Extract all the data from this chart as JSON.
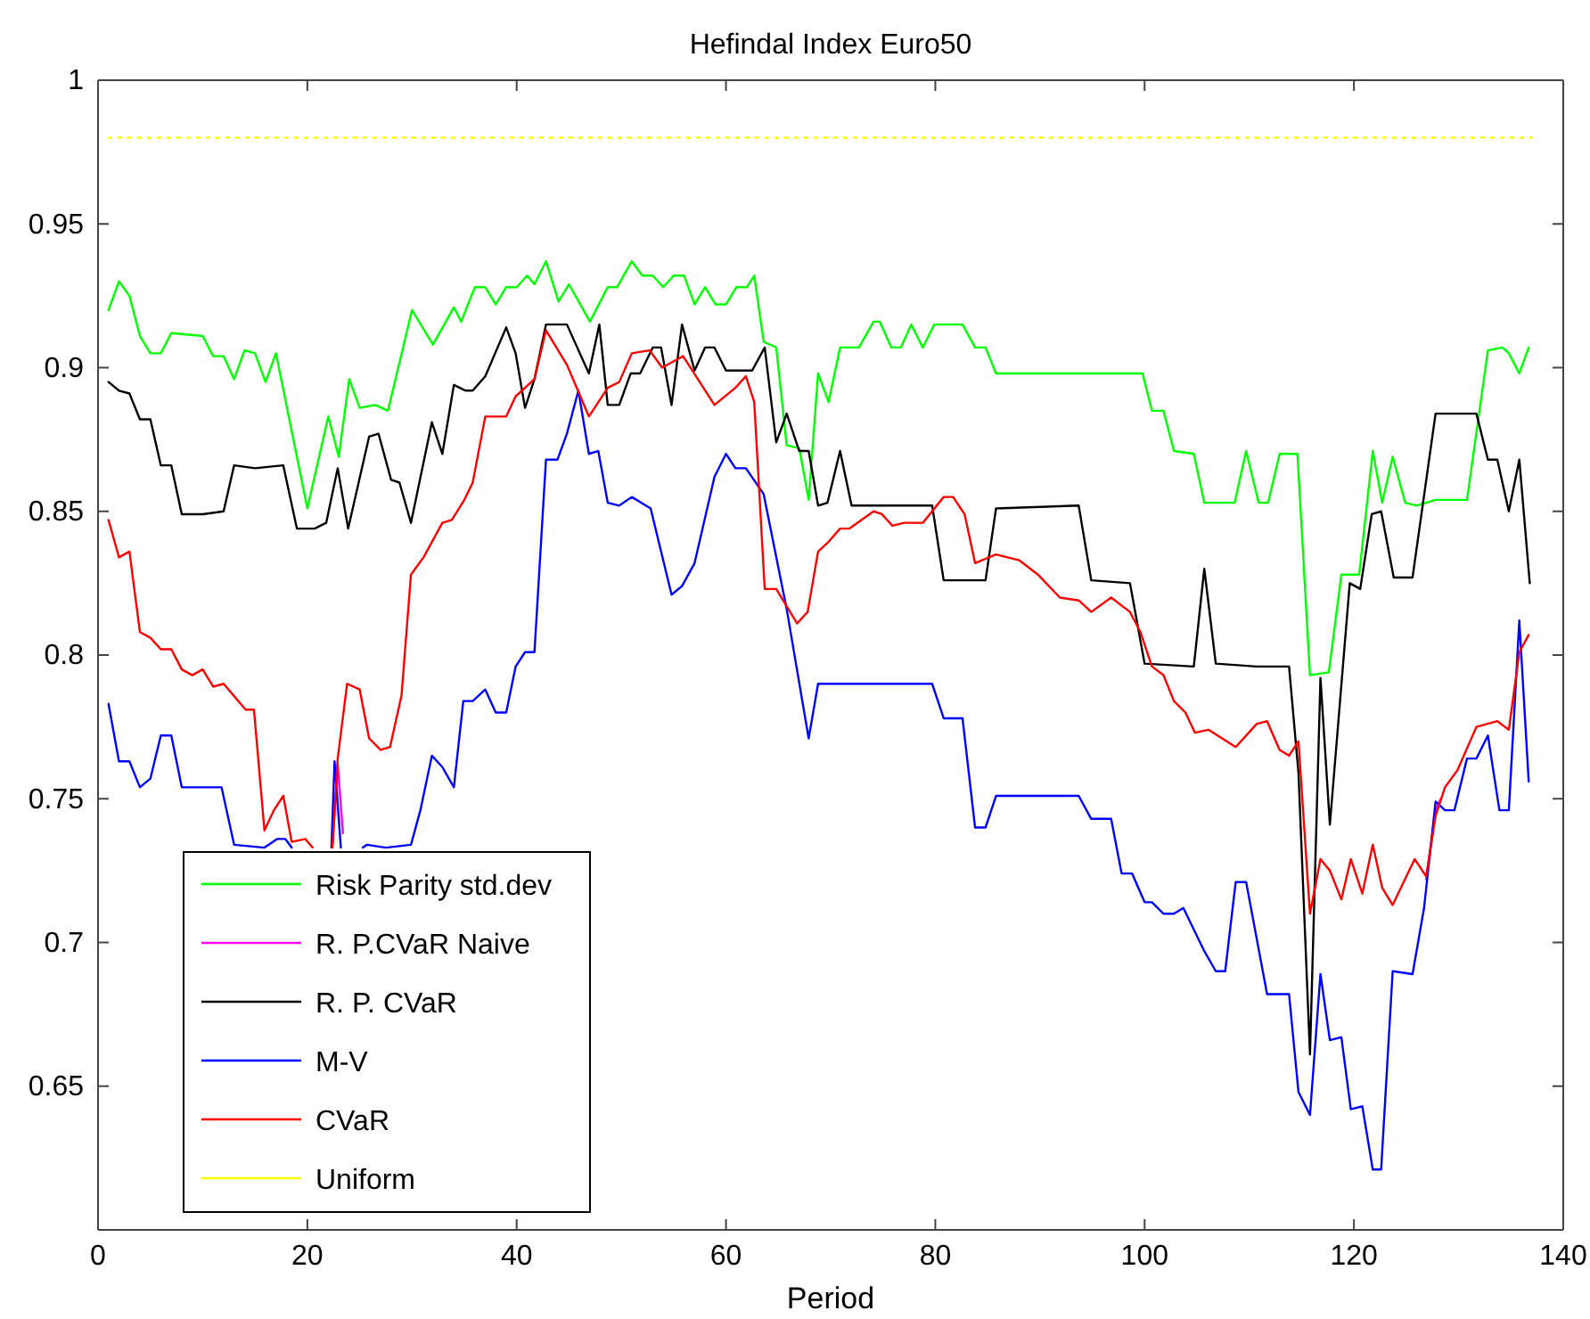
{
  "chart_data": {
    "type": "line",
    "title": "Hefindal Index Euro50",
    "xlabel": "Period",
    "xlim": [
      0,
      140
    ],
    "xticks": [
      0,
      20,
      40,
      60,
      80,
      100,
      120,
      140
    ],
    "ylim": [
      0.6,
      1
    ],
    "yticks": [
      0.65,
      0.7,
      0.75,
      0.8,
      0.85,
      0.9,
      0.95,
      1
    ],
    "grid": false,
    "legend": "bottom left",
    "marker": "none",
    "line_style": "solid",
    "series": [
      {
        "name": "Risk Parity std.dev",
        "color": "#00ff00",
        "x": [
          1,
          2,
          3,
          4,
          5,
          6,
          7,
          10,
          11,
          12,
          13,
          14,
          15,
          16,
          17,
          20,
          22,
          23,
          24,
          25,
          26.5,
          27.7,
          30,
          32,
          34,
          34.7,
          36,
          37,
          38,
          39,
          40,
          41,
          41.7,
          42.8,
          44,
          45,
          47,
          48.7,
          49.6,
          51,
          52,
          53,
          54,
          55,
          56,
          57,
          58,
          59,
          60,
          61,
          62,
          62.7,
          63.6,
          64.8,
          65.8,
          67,
          67.9,
          68.8,
          69.8,
          70.9,
          72.7,
          74.1,
          74.7,
          75.8,
          76.7,
          77.7,
          78.8,
          79.9,
          82.6,
          83.8,
          84.8,
          85.8,
          99.8,
          100.7,
          101.8,
          102.8,
          104.7,
          105.7,
          108.6,
          109.7,
          110.9,
          111.8,
          112.9,
          114.6,
          115.8,
          117.6,
          118.8,
          120.5,
          121.8,
          122.7,
          123.7,
          124.9,
          126,
          127.8,
          130.8,
          132.8,
          134.2,
          134.8,
          135.8,
          136.7
        ],
        "values": [
          0.92,
          0.93,
          0.925,
          0.911,
          0.905,
          0.905,
          0.912,
          0.911,
          0.904,
          0.904,
          0.896,
          0.906,
          0.905,
          0.895,
          0.905,
          0.851,
          0.883,
          0.869,
          0.896,
          0.886,
          0.887,
          0.885,
          0.92,
          0.908,
          0.921,
          0.916,
          0.928,
          0.928,
          0.922,
          0.928,
          0.928,
          0.932,
          0.929,
          0.937,
          0.923,
          0.929,
          0.916,
          0.928,
          0.928,
          0.937,
          0.932,
          0.932,
          0.928,
          0.932,
          0.932,
          0.922,
          0.928,
          0.922,
          0.922,
          0.928,
          0.928,
          0.932,
          0.909,
          0.907,
          0.873,
          0.872,
          0.854,
          0.898,
          0.888,
          0.907,
          0.907,
          0.916,
          0.916,
          0.907,
          0.907,
          0.915,
          0.907,
          0.915,
          0.915,
          0.907,
          0.907,
          0.898,
          0.898,
          0.885,
          0.885,
          0.871,
          0.87,
          0.853,
          0.853,
          0.871,
          0.853,
          0.853,
          0.87,
          0.87,
          0.793,
          0.794,
          0.828,
          0.828,
          0.871,
          0.853,
          0.869,
          0.853,
          0.852,
          0.854,
          0.854,
          0.906,
          0.907,
          0.905,
          0.898,
          0.907
        ]
      },
      {
        "name": "R. P.CVaR Naive",
        "color": "#ff00ff",
        "x": [
          22.4,
          22.9,
          23.4,
          80,
          126.9,
          127.8,
          128.3
        ],
        "values": [
          0.734,
          0.762,
          0.738,
          null,
          0.722,
          0.746,
          0.75
        ]
      },
      {
        "name": "R. P. CVaR",
        "color": "#000000",
        "x": [
          1,
          2,
          3,
          4,
          5,
          6,
          7,
          8,
          10,
          12,
          13,
          15,
          17.7,
          19,
          20.7,
          21.8,
          22.9,
          23.9,
          25.9,
          26.8,
          28,
          28.8,
          29.9,
          31.9,
          32.9,
          34,
          35.1,
          35.8,
          37,
          39,
          39.9,
          40.8,
          41.7,
          42.8,
          44.8,
          46.9,
          47.9,
          48.7,
          49.8,
          50.9,
          51.8,
          53,
          53.8,
          54.8,
          55.8,
          57,
          58,
          58.9,
          60,
          62.5,
          63.7,
          64.8,
          65.8,
          67,
          67.9,
          68.8,
          69.7,
          70.9,
          72,
          75.8,
          79.7,
          80.8,
          84.8,
          85.8,
          93.7,
          94.9,
          98.6,
          100,
          104.7,
          105.7,
          106.8,
          110.7,
          113.8,
          114.7,
          115.8,
          116.8,
          117.7,
          119.6,
          120.6,
          121.7,
          122.6,
          123.8,
          125.6,
          127.8,
          131.7,
          132.8,
          133.7,
          134.8,
          135.8,
          136.8
        ],
        "values": [
          0.895,
          0.892,
          0.891,
          0.882,
          0.882,
          0.866,
          0.866,
          0.849,
          0.849,
          0.85,
          0.866,
          0.865,
          0.866,
          0.844,
          0.844,
          0.846,
          0.865,
          0.844,
          0.876,
          0.877,
          0.861,
          0.86,
          0.846,
          0.881,
          0.87,
          0.894,
          0.892,
          0.892,
          0.897,
          0.914,
          0.905,
          0.886,
          0.896,
          0.915,
          0.915,
          0.898,
          0.915,
          0.887,
          0.887,
          0.898,
          0.898,
          0.907,
          0.907,
          0.887,
          0.915,
          0.899,
          0.907,
          0.907,
          0.899,
          0.899,
          0.907,
          0.874,
          0.884,
          0.871,
          0.871,
          0.852,
          0.853,
          0.871,
          0.852,
          0.852,
          0.852,
          0.826,
          0.826,
          0.851,
          0.852,
          0.826,
          0.825,
          0.797,
          0.796,
          0.83,
          0.797,
          0.796,
          0.796,
          0.759,
          0.661,
          0.792,
          0.741,
          0.825,
          0.823,
          0.849,
          0.85,
          0.827,
          0.827,
          0.884,
          0.884,
          0.868,
          0.868,
          0.85,
          0.868,
          0.825
        ]
      },
      {
        "name": "M-V",
        "color": "#0000ff",
        "x": [
          1,
          2,
          3,
          4,
          5,
          6,
          7,
          8,
          11.8,
          13,
          15.9,
          17.1,
          17.9,
          18.5,
          18.6,
          22.3,
          22.6,
          23.2,
          23.3,
          25.3,
          25.7,
          27.5,
          29.9,
          30.8,
          31.9,
          32.9,
          34,
          34.9,
          35.8,
          37,
          38,
          39,
          39.9,
          40.8,
          41.7,
          42.8,
          43.9,
          44.8,
          45.9,
          46.9,
          47.8,
          48.7,
          49.8,
          51,
          52.8,
          54.8,
          55.8,
          57,
          58.9,
          60,
          60.9,
          61.9,
          63.6,
          65.8,
          67.9,
          68.8,
          79.7,
          80.8,
          82.6,
          83.8,
          84.8,
          85.8,
          93.7,
          94.9,
          96.8,
          97.8,
          98.8,
          100,
          100.7,
          101.8,
          102.8,
          103.7,
          105.7,
          106.8,
          107.7,
          108.7,
          109.7,
          111.7,
          113.8,
          114.7,
          115.8,
          116.8,
          117.7,
          118.8,
          119.7,
          120.8,
          121.8,
          122.6,
          123.7,
          125.6,
          126.7,
          127.8,
          128.7,
          129.6,
          130.8,
          131.7,
          132.8,
          133.9,
          134.8,
          135.8,
          136.7
        ],
        "values": [
          0.783,
          0.763,
          0.763,
          0.754,
          0.757,
          0.772,
          0.772,
          0.754,
          0.754,
          0.734,
          0.733,
          0.736,
          0.736,
          0.733,
          null,
          0.733,
          0.763,
          0.733,
          null,
          0.733,
          0.734,
          0.733,
          0.734,
          0.746,
          0.765,
          0.761,
          0.754,
          0.784,
          0.784,
          0.788,
          0.78,
          0.78,
          0.796,
          0.801,
          0.801,
          0.868,
          0.868,
          0.877,
          0.892,
          0.87,
          0.871,
          0.853,
          0.852,
          0.855,
          0.851,
          0.821,
          0.824,
          0.832,
          0.862,
          0.87,
          0.865,
          0.865,
          0.856,
          0.816,
          0.771,
          0.79,
          0.79,
          0.778,
          0.778,
          0.74,
          0.74,
          0.751,
          0.751,
          0.743,
          0.743,
          0.724,
          0.724,
          0.714,
          0.714,
          0.71,
          0.71,
          0.712,
          0.697,
          0.69,
          0.69,
          0.721,
          0.721,
          0.682,
          0.682,
          0.648,
          0.64,
          0.689,
          0.666,
          0.667,
          0.642,
          0.643,
          0.621,
          0.621,
          0.69,
          0.689,
          0.712,
          0.749,
          0.746,
          0.746,
          0.764,
          0.764,
          0.772,
          0.746,
          0.746,
          0.812,
          0.756
        ]
      },
      {
        "name": "CVaR",
        "color": "#ff0000",
        "x": [
          1,
          2,
          3,
          4,
          5,
          6,
          7,
          8,
          9,
          10,
          11,
          12,
          14.1,
          14.9,
          15.9,
          16.8,
          17.7,
          18.5,
          19.8,
          20.5,
          20.6,
          22.4,
          22.9,
          23.8,
          25,
          25.9,
          27,
          27.9,
          29,
          29.9,
          31.1,
          32.9,
          33.8,
          35,
          35.8,
          37,
          39,
          39.9,
          41.7,
          42.8,
          44.8,
          46.9,
          48.7,
          49.8,
          51,
          52.7,
          53.9,
          55.9,
          58.9,
          60.9,
          61.9,
          62.7,
          63.7,
          64.8,
          66.8,
          67.8,
          68.8,
          69.7,
          70.9,
          71.8,
          74.1,
          74.9,
          75.9,
          77,
          78.8,
          80.8,
          81.7,
          82.8,
          83.8,
          85.8,
          88,
          89.8,
          91.9,
          93.7,
          94.9,
          96.8,
          98.6,
          99.6,
          100.7,
          101.8,
          102.8,
          103.9,
          104.8,
          106.1,
          108.7,
          110.7,
          111.7,
          112.9,
          113.8,
          114.7,
          115.8,
          116.8,
          117.7,
          118.8,
          119.7,
          120.8,
          121.8,
          122.7,
          123.7,
          125.8,
          126.9,
          127.8,
          128.7,
          129.9,
          131.7,
          133.7,
          134.8,
          135.8,
          136.7
        ],
        "values": [
          0.847,
          0.834,
          0.836,
          0.808,
          0.806,
          0.802,
          0.802,
          0.795,
          0.793,
          0.795,
          0.789,
          0.79,
          0.781,
          0.781,
          0.739,
          0.746,
          0.751,
          0.735,
          0.736,
          0.733,
          null,
          0.733,
          0.764,
          0.79,
          0.788,
          0.771,
          0.767,
          0.768,
          0.786,
          0.828,
          0.834,
          0.846,
          0.847,
          0.854,
          0.86,
          0.883,
          0.883,
          0.89,
          0.896,
          0.913,
          0.901,
          0.883,
          0.893,
          0.895,
          0.905,
          0.906,
          0.9,
          0.904,
          0.887,
          0.893,
          0.897,
          0.888,
          0.823,
          0.823,
          0.811,
          0.815,
          0.836,
          0.839,
          0.844,
          0.844,
          0.85,
          0.849,
          0.845,
          0.846,
          0.846,
          0.855,
          0.855,
          0.849,
          0.832,
          0.835,
          0.833,
          0.828,
          0.82,
          0.819,
          0.815,
          0.82,
          0.815,
          0.808,
          0.796,
          0.793,
          0.784,
          0.78,
          0.773,
          0.774,
          0.768,
          0.776,
          0.777,
          0.767,
          0.765,
          0.77,
          0.71,
          0.729,
          0.725,
          0.715,
          0.729,
          0.717,
          0.734,
          0.719,
          0.713,
          0.729,
          0.723,
          0.744,
          0.754,
          0.76,
          0.775,
          0.777,
          0.774,
          0.801,
          0.807
        ]
      },
      {
        "name": "Uniform",
        "color": "#ffff00",
        "line_style": "dotted",
        "x": [
          1,
          137
        ],
        "values": [
          0.98,
          0.98
        ]
      }
    ]
  }
}
